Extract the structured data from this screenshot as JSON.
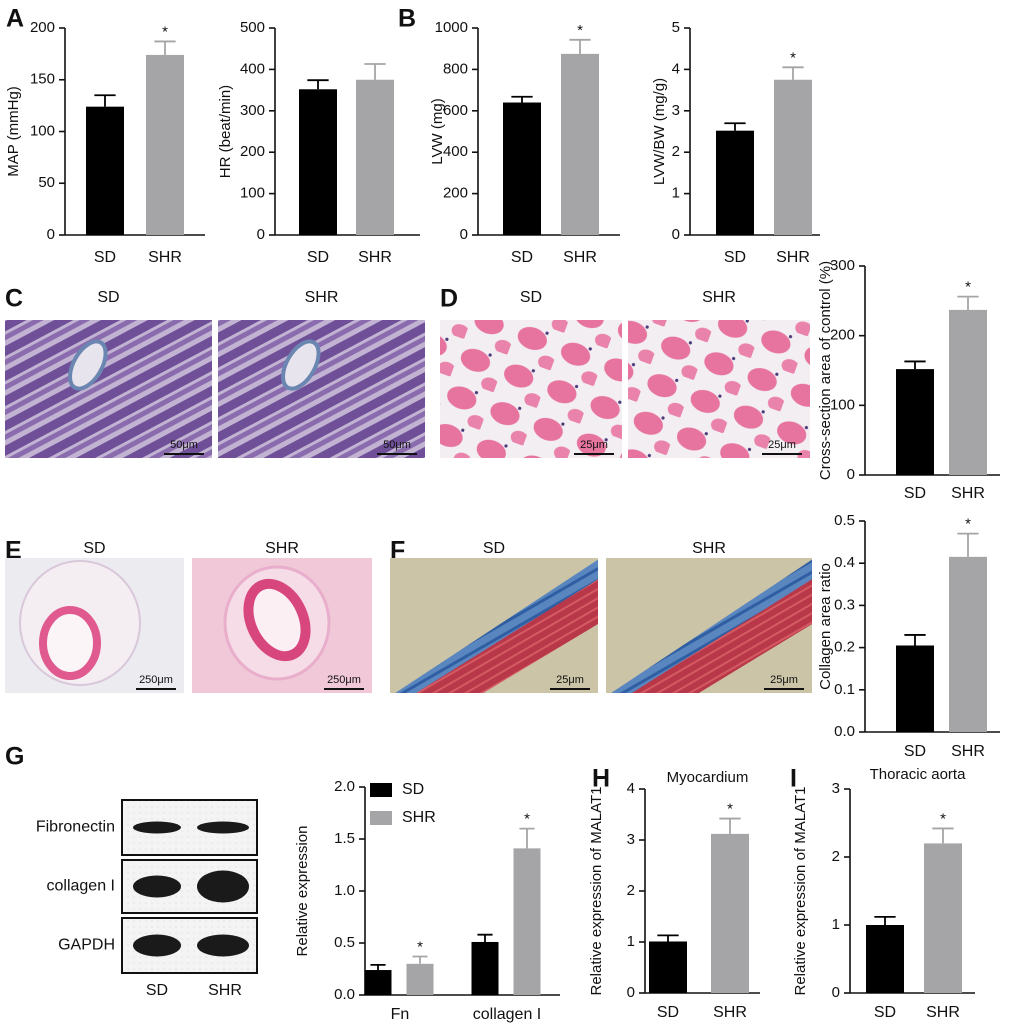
{
  "panel_labels": [
    "A",
    "B",
    "C",
    "D",
    "E",
    "F",
    "G",
    "H",
    "I"
  ],
  "micrographs": [
    {
      "label": "SD",
      "scale_bar": "50μm"
    },
    {
      "label": "SHR",
      "scale_bar": "50μm"
    },
    {
      "label": "SD",
      "scale_bar": "25μm"
    },
    {
      "label": "SHR",
      "scale_bar": "25μm"
    },
    {
      "label": "SD",
      "scale_bar": "250μm"
    },
    {
      "label": "SHR",
      "scale_bar": "250μm"
    },
    {
      "label": "SD",
      "scale_bar": "25μm"
    },
    {
      "label": "SHR",
      "scale_bar": "25μm"
    }
  ],
  "western_blot": {
    "bands": [
      "Fibronectin",
      "collagen I",
      "GAPDH"
    ],
    "lanes": [
      "SD",
      "SHR"
    ]
  },
  "chart_data": [
    {
      "type": "bar",
      "y_label": "MAP (mmHg)",
      "categories": [
        "SD",
        "SHR"
      ],
      "values": [
        124,
        174
      ],
      "errors": [
        11,
        13
      ],
      "significance": [
        null,
        "*"
      ],
      "colors": [
        "#000000",
        "#a5a5a8"
      ],
      "ylim": [
        0,
        200
      ],
      "yticks": [
        0,
        50,
        100,
        150,
        200
      ]
    },
    {
      "type": "bar",
      "y_label": "HR (beat/min)",
      "categories": [
        "SD",
        "SHR"
      ],
      "values": [
        352,
        375
      ],
      "errors": [
        22,
        38
      ],
      "significance": [
        null,
        null
      ],
      "colors": [
        "#000000",
        "#a5a5a8"
      ],
      "ylim": [
        0,
        500
      ],
      "yticks": [
        0,
        100,
        200,
        300,
        400,
        500
      ]
    },
    {
      "type": "bar",
      "y_label": "LVW (mg)",
      "categories": [
        "SD",
        "SHR"
      ],
      "values": [
        640,
        875
      ],
      "errors": [
        28,
        68
      ],
      "significance": [
        null,
        "*"
      ],
      "colors": [
        "#000000",
        "#a5a5a8"
      ],
      "ylim": [
        0,
        1000
      ],
      "yticks": [
        0,
        200,
        400,
        600,
        800,
        1000
      ]
    },
    {
      "type": "bar",
      "y_label": "LVW/BW (mg/g)",
      "categories": [
        "SD",
        "SHR"
      ],
      "values": [
        2.52,
        3.75
      ],
      "errors": [
        0.18,
        0.3
      ],
      "significance": [
        null,
        "*"
      ],
      "colors": [
        "#000000",
        "#a5a5a8"
      ],
      "ylim": [
        0,
        5
      ],
      "yticks": [
        0,
        1,
        2,
        3,
        4,
        5
      ]
    },
    {
      "type": "bar",
      "y_label": "Cross-section area of control (%)",
      "categories": [
        "SD",
        "SHR"
      ],
      "values": [
        152,
        237
      ],
      "errors": [
        11,
        19
      ],
      "significance": [
        null,
        "*"
      ],
      "colors": [
        "#000000",
        "#a5a5a8"
      ],
      "ylim": [
        0,
        300
      ],
      "yticks": [
        0,
        100,
        200,
        300
      ]
    },
    {
      "type": "bar",
      "y_label": "Collagen area ratio",
      "categories": [
        "SD",
        "SHR"
      ],
      "values": [
        0.205,
        0.415
      ],
      "errors": [
        0.025,
        0.055
      ],
      "significance": [
        null,
        "*"
      ],
      "colors": [
        "#000000",
        "#a5a5a8"
      ],
      "ylim": [
        0,
        0.5
      ],
      "yticks": [
        {
          "value": 0,
          "label": "0.0"
        },
        0.1,
        0.2,
        0.3,
        0.4,
        0.5
      ]
    },
    {
      "type": "grouped_bar",
      "y_label": "Relative expression",
      "categories": [
        "Fn",
        "collagen I"
      ],
      "series": [
        {
          "name": "SD",
          "color": "#000000",
          "values": [
            0.24,
            0.51
          ],
          "errors": [
            0.05,
            0.07
          ],
          "significance": [
            null,
            null
          ]
        },
        {
          "name": "SHR",
          "color": "#a5a5a8",
          "values": [
            0.3,
            1.41
          ],
          "errors": [
            0.07,
            0.19
          ],
          "significance": [
            "*",
            "*"
          ]
        }
      ],
      "ylim": [
        0,
        2
      ],
      "yticks": [
        {
          "value": 0,
          "label": "0.0"
        },
        0.5,
        {
          "value": 1,
          "label": "1.0"
        },
        1.5,
        {
          "value": 2,
          "label": "2.0"
        }
      ],
      "legend": "top-left"
    },
    {
      "type": "bar",
      "title": "Myocardium",
      "y_label": "Relative expression of MALAT1",
      "categories": [
        "SD",
        "SHR"
      ],
      "values": [
        1.01,
        3.12
      ],
      "errors": [
        0.12,
        0.3
      ],
      "significance": [
        null,
        "*"
      ],
      "colors": [
        "#000000",
        "#a5a5a8"
      ],
      "ylim": [
        0,
        4
      ],
      "yticks": [
        0,
        1,
        2,
        3,
        4
      ]
    },
    {
      "type": "bar",
      "title": "Thoracic aorta",
      "y_label": "Relative expression of MALAT1",
      "categories": [
        "SD",
        "SHR"
      ],
      "values": [
        1.0,
        2.2
      ],
      "errors": [
        0.12,
        0.22
      ],
      "significance": [
        null,
        "*"
      ],
      "colors": [
        "#000000",
        "#a5a5a8"
      ],
      "ylim": [
        0,
        3
      ],
      "yticks": [
        0,
        1,
        2,
        3
      ]
    }
  ]
}
